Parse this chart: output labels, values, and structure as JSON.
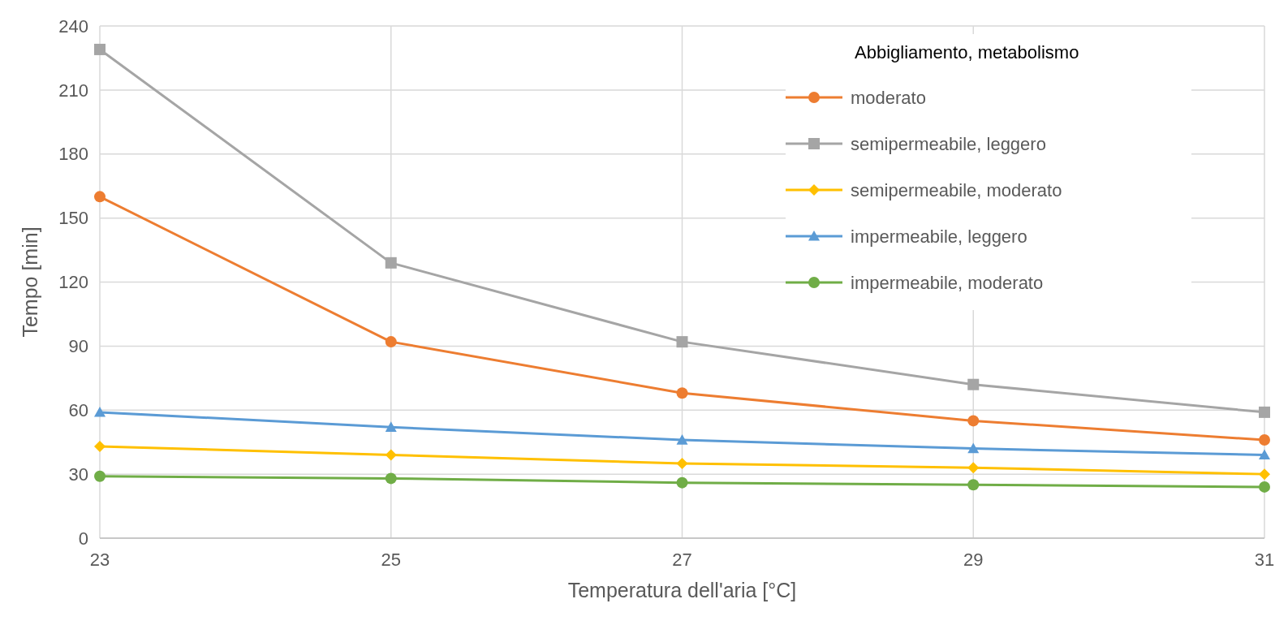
{
  "chart_data": {
    "type": "line",
    "xlabel": "Temperatura dell'aria [°C]",
    "ylabel": "Tempo [min]",
    "legend_title": "Abbigliamento, metabolismo",
    "x": [
      23,
      25,
      27,
      29,
      31
    ],
    "xlim": [
      23,
      31
    ],
    "xticks": [
      23,
      25,
      27,
      29,
      31
    ],
    "ylim": [
      0,
      240
    ],
    "yticks": [
      0,
      30,
      60,
      90,
      120,
      150,
      180,
      210,
      240
    ],
    "grid": true,
    "legend": "top right",
    "series": [
      {
        "name": "moderato",
        "color": "#ed7d31",
        "marker": "circle",
        "values": [
          160,
          92,
          68,
          55,
          46
        ]
      },
      {
        "name": "semipermeabile, leggero",
        "color": "#a5a5a5",
        "marker": "square",
        "values": [
          229,
          129,
          92,
          72,
          59
        ]
      },
      {
        "name": "semipermeabile, moderato",
        "color": "#ffc000",
        "marker": "diamond",
        "values": [
          43,
          39,
          35,
          33,
          30
        ]
      },
      {
        "name": "impermeabile, leggero",
        "color": "#5b9bd5",
        "marker": "triangle",
        "values": [
          59,
          52,
          46,
          42,
          39
        ]
      },
      {
        "name": "impermeabile, moderato",
        "color": "#70ad47",
        "marker": "circle",
        "values": [
          29,
          28,
          26,
          25,
          24
        ]
      }
    ]
  }
}
